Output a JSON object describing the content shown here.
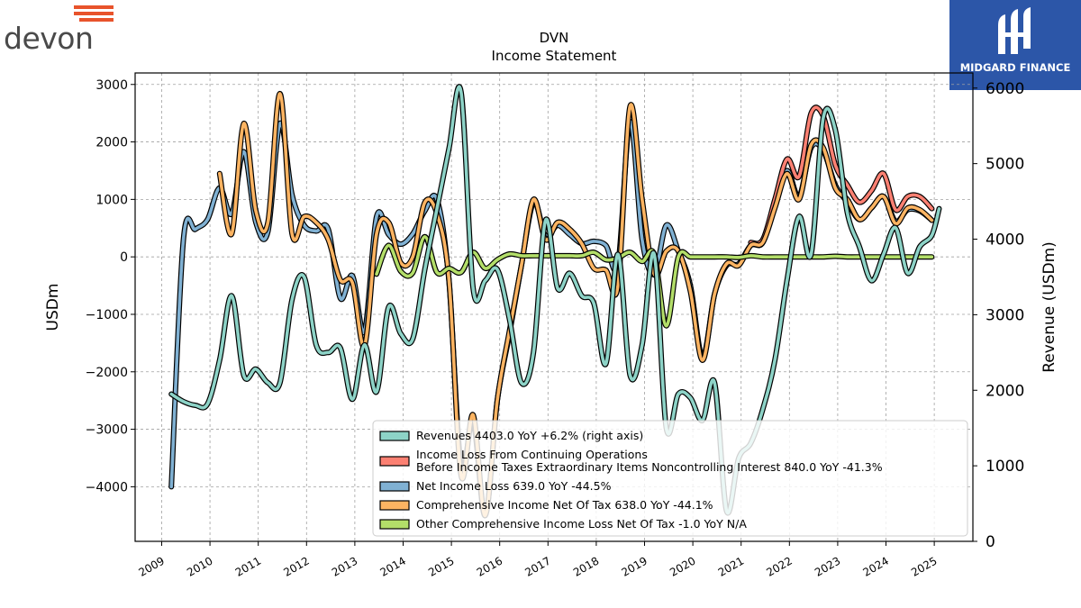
{
  "logos": {
    "left_text": "devon",
    "right_text": "MIDGARD FINANCE"
  },
  "colors": {
    "revenues": "#8dd3c7",
    "income_loss_cont_ops": "#fb8072",
    "net_income": "#80b1d3",
    "comprehensive_income": "#fdb462",
    "other_comprehensive": "#b3de69",
    "devon_accent": "#e8532b",
    "midgard_bg": "#2c56a8"
  },
  "chart_data": {
    "type": "line",
    "title": "DVN",
    "subtitle": "Income Statement",
    "ylabel": "USDm",
    "y2label": "Revenue (USDm)",
    "ylim": [
      -4950,
      3200
    ],
    "y2lim": [
      0,
      6200
    ],
    "xlim": [
      2008.45,
      2025.8
    ],
    "yticks": [
      3000,
      2000,
      1000,
      0,
      -1000,
      -2000,
      -3000,
      -4000
    ],
    "ytick_labels": [
      "3000",
      "2000",
      "1000",
      "0",
      "−1000",
      "−2000",
      "−3000",
      "−4000"
    ],
    "y2ticks": [
      6000,
      5000,
      4000,
      3000,
      2000,
      1000,
      0
    ],
    "y2tick_labels": [
      "6000",
      "5000",
      "4000",
      "3000",
      "2000",
      "1000",
      "0"
    ],
    "xticks": [
      2009,
      2010,
      2011,
      2012,
      2013,
      2014,
      2015,
      2016,
      2017,
      2018,
      2019,
      2020,
      2021,
      2022,
      2023,
      2024,
      2025
    ],
    "xtick_labels": [
      "2009",
      "2010",
      "2011",
      "2012",
      "2013",
      "2014",
      "2015",
      "2016",
      "2017",
      "2018",
      "2019",
      "2020",
      "2021",
      "2022",
      "2023",
      "2024",
      "2025"
    ],
    "grid": true,
    "legend_position": "lower-right",
    "series": [
      {
        "key": "net_income",
        "axis": "left",
        "legend": [
          "Net Income Loss  639.0 YoY -44.5%"
        ],
        "points": [
          [
            2009.2,
            -4000
          ],
          [
            2009.45,
            300
          ],
          [
            2009.7,
            480
          ],
          [
            2009.95,
            650
          ],
          [
            2010.2,
            1200
          ],
          [
            2010.45,
            750
          ],
          [
            2010.7,
            1830
          ],
          [
            2010.95,
            600
          ],
          [
            2011.2,
            440
          ],
          [
            2011.45,
            2320
          ],
          [
            2011.7,
            1080
          ],
          [
            2011.95,
            550
          ],
          [
            2012.2,
            450
          ],
          [
            2012.45,
            480
          ],
          [
            2012.7,
            -720
          ],
          [
            2012.95,
            -330
          ],
          [
            2013.2,
            -1300
          ],
          [
            2013.45,
            700
          ],
          [
            2013.7,
            390
          ],
          [
            2013.95,
            220
          ],
          [
            2014.2,
            400
          ],
          [
            2014.45,
            800
          ],
          [
            2014.7,
            1000
          ],
          [
            2014.95,
            -420
          ],
          [
            2015.2,
            -3650
          ],
          [
            2015.45,
            -2850
          ],
          [
            2015.7,
            -4500
          ],
          [
            2015.95,
            -2500
          ],
          [
            2016.2,
            -1350
          ],
          [
            2016.45,
            -150
          ],
          [
            2016.7,
            950
          ],
          [
            2016.95,
            370
          ],
          [
            2017.2,
            550
          ],
          [
            2017.45,
            390
          ],
          [
            2017.7,
            230
          ],
          [
            2017.95,
            270
          ],
          [
            2018.2,
            200
          ],
          [
            2018.45,
            -130
          ],
          [
            2018.7,
            2350
          ],
          [
            2018.95,
            300
          ],
          [
            2019.2,
            -300
          ],
          [
            2019.45,
            550
          ],
          [
            2019.7,
            100
          ],
          [
            2019.95,
            -500
          ],
          [
            2020.2,
            -1750
          ],
          [
            2020.45,
            -650
          ],
          [
            2020.7,
            -150
          ],
          [
            2020.95,
            -120
          ],
          [
            2021.2,
            200
          ],
          [
            2021.45,
            250
          ],
          [
            2021.7,
            900
          ],
          [
            2021.95,
            1500
          ],
          [
            2022.2,
            1050
          ],
          [
            2022.45,
            1900
          ],
          [
            2022.7,
            1850
          ],
          [
            2022.95,
            1250
          ],
          [
            2023.2,
            950
          ],
          [
            2023.45,
            650
          ],
          [
            2023.7,
            850
          ],
          [
            2023.95,
            1050
          ],
          [
            2024.2,
            620
          ],
          [
            2024.45,
            820
          ],
          [
            2024.7,
            800
          ],
          [
            2024.95,
            639
          ]
        ]
      },
      {
        "key": "income_loss_cont_ops",
        "axis": "left",
        "legend": [
          "Income Loss From Continuing Operations",
          "Before Income Taxes Extraordinary Items Noncontrolling Interest  840.0 YoY -41.3%"
        ],
        "points": [
          [
            2021.2,
            250
          ],
          [
            2021.45,
            300
          ],
          [
            2021.7,
            1000
          ],
          [
            2021.95,
            1700
          ],
          [
            2022.2,
            1400
          ],
          [
            2022.45,
            2500
          ],
          [
            2022.7,
            2450
          ],
          [
            2022.95,
            1600
          ],
          [
            2023.2,
            1250
          ],
          [
            2023.45,
            950
          ],
          [
            2023.7,
            1150
          ],
          [
            2023.95,
            1450
          ],
          [
            2024.2,
            820
          ],
          [
            2024.45,
            1050
          ],
          [
            2024.7,
            1050
          ],
          [
            2024.95,
            840
          ]
        ]
      },
      {
        "key": "comprehensive_income",
        "axis": "left",
        "legend": [
          "Comprehensive Income Net Of Tax  638.0 YoY -44.1%"
        ],
        "points": [
          [
            2010.2,
            1450
          ],
          [
            2010.45,
            400
          ],
          [
            2010.7,
            2320
          ],
          [
            2010.95,
            800
          ],
          [
            2011.2,
            600
          ],
          [
            2011.45,
            2840
          ],
          [
            2011.7,
            400
          ],
          [
            2011.95,
            700
          ],
          [
            2012.2,
            600
          ],
          [
            2012.45,
            300
          ],
          [
            2012.7,
            -400
          ],
          [
            2012.95,
            -450
          ],
          [
            2013.2,
            -1550
          ],
          [
            2013.45,
            400
          ],
          [
            2013.7,
            600
          ],
          [
            2013.95,
            -100
          ],
          [
            2014.2,
            0
          ],
          [
            2014.45,
            950
          ],
          [
            2014.7,
            750
          ],
          [
            2014.95,
            -400
          ],
          [
            2015.2,
            -3800
          ],
          [
            2015.45,
            -2750
          ],
          [
            2015.7,
            -4500
          ],
          [
            2015.95,
            -2500
          ],
          [
            2016.2,
            -1300
          ],
          [
            2016.45,
            -150
          ],
          [
            2016.7,
            1000
          ],
          [
            2016.95,
            300
          ],
          [
            2017.2,
            600
          ],
          [
            2017.45,
            480
          ],
          [
            2017.7,
            230
          ],
          [
            2017.95,
            -200
          ],
          [
            2018.2,
            -230
          ],
          [
            2018.45,
            -500
          ],
          [
            2018.7,
            2620
          ],
          [
            2018.95,
            1000
          ],
          [
            2019.2,
            -300
          ],
          [
            2019.45,
            100
          ],
          [
            2019.7,
            100
          ],
          [
            2019.95,
            -600
          ],
          [
            2020.2,
            -1800
          ],
          [
            2020.45,
            -650
          ],
          [
            2020.7,
            -120
          ],
          [
            2020.95,
            -150
          ],
          [
            2021.2,
            200
          ],
          [
            2021.45,
            250
          ],
          [
            2021.7,
            850
          ],
          [
            2021.95,
            1450
          ],
          [
            2022.2,
            1000
          ],
          [
            2022.45,
            1950
          ],
          [
            2022.7,
            1900
          ],
          [
            2022.95,
            1200
          ],
          [
            2023.2,
            1000
          ],
          [
            2023.45,
            650
          ],
          [
            2023.7,
            850
          ],
          [
            2023.95,
            1050
          ],
          [
            2024.2,
            580
          ],
          [
            2024.45,
            850
          ],
          [
            2024.7,
            820
          ],
          [
            2024.95,
            638
          ]
        ]
      },
      {
        "key": "other_comprehensive",
        "axis": "left",
        "legend": [
          "Other Comprehensive Income Loss Net Of Tax  -1.0 YoY N/A"
        ],
        "points": [
          [
            2013.45,
            -300
          ],
          [
            2013.7,
            200
          ],
          [
            2013.95,
            -250
          ],
          [
            2014.2,
            -280
          ],
          [
            2014.45,
            350
          ],
          [
            2014.7,
            -270
          ],
          [
            2014.95,
            -200
          ],
          [
            2015.2,
            -270
          ],
          [
            2015.45,
            80
          ],
          [
            2015.7,
            -200
          ],
          [
            2015.95,
            -50
          ],
          [
            2016.2,
            50
          ],
          [
            2016.45,
            20
          ],
          [
            2016.7,
            20
          ],
          [
            2016.95,
            20
          ],
          [
            2017.2,
            20
          ],
          [
            2017.45,
            20
          ],
          [
            2017.7,
            20
          ],
          [
            2017.95,
            80
          ],
          [
            2018.2,
            -50
          ],
          [
            2018.45,
            -20
          ],
          [
            2018.7,
            80
          ],
          [
            2018.95,
            -80
          ],
          [
            2019.2,
            50
          ],
          [
            2019.45,
            -1200
          ],
          [
            2019.7,
            0
          ],
          [
            2019.95,
            0
          ],
          [
            2020.2,
            0
          ],
          [
            2020.45,
            0
          ],
          [
            2020.7,
            0
          ],
          [
            2020.95,
            -10
          ],
          [
            2021.2,
            20
          ],
          [
            2021.45,
            0
          ],
          [
            2021.7,
            0
          ],
          [
            2021.95,
            0
          ],
          [
            2022.2,
            0
          ],
          [
            2022.45,
            0
          ],
          [
            2022.7,
            0
          ],
          [
            2022.95,
            10
          ],
          [
            2023.2,
            0
          ],
          [
            2023.45,
            0
          ],
          [
            2023.7,
            0
          ],
          [
            2023.95,
            0
          ],
          [
            2024.2,
            0
          ],
          [
            2024.45,
            0
          ],
          [
            2024.7,
            0
          ],
          [
            2024.95,
            -1
          ]
        ]
      },
      {
        "key": "revenues",
        "axis": "right",
        "legend": [
          "Revenues  4403.0 YoY +6.2% (right axis)"
        ],
        "points": [
          [
            2009.2,
            1950
          ],
          [
            2009.45,
            1850
          ],
          [
            2009.7,
            1800
          ],
          [
            2009.95,
            1820
          ],
          [
            2010.2,
            2400
          ],
          [
            2010.45,
            3250
          ],
          [
            2010.7,
            2200
          ],
          [
            2010.95,
            2280
          ],
          [
            2011.2,
            2100
          ],
          [
            2011.45,
            2100
          ],
          [
            2011.7,
            3200
          ],
          [
            2011.95,
            3500
          ],
          [
            2012.2,
            2600
          ],
          [
            2012.45,
            2500
          ],
          [
            2012.7,
            2560
          ],
          [
            2012.95,
            1880
          ],
          [
            2013.2,
            2600
          ],
          [
            2013.45,
            1980
          ],
          [
            2013.7,
            3100
          ],
          [
            2013.95,
            2750
          ],
          [
            2014.2,
            2680
          ],
          [
            2014.45,
            3600
          ],
          [
            2014.7,
            4400
          ],
          [
            2014.95,
            5200
          ],
          [
            2015.2,
            5950
          ],
          [
            2015.45,
            3350
          ],
          [
            2015.7,
            3450
          ],
          [
            2015.95,
            3600
          ],
          [
            2016.2,
            2950
          ],
          [
            2016.45,
            2100
          ],
          [
            2016.7,
            2500
          ],
          [
            2016.95,
            4250
          ],
          [
            2017.2,
            3350
          ],
          [
            2017.45,
            3550
          ],
          [
            2017.7,
            3250
          ],
          [
            2017.95,
            3150
          ],
          [
            2018.2,
            2350
          ],
          [
            2018.45,
            3800
          ],
          [
            2018.7,
            2200
          ],
          [
            2018.95,
            2600
          ],
          [
            2019.2,
            3800
          ],
          [
            2019.45,
            1500
          ],
          [
            2019.7,
            1950
          ],
          [
            2019.95,
            1900
          ],
          [
            2020.2,
            1600
          ],
          [
            2020.45,
            2100
          ],
          [
            2020.7,
            400
          ],
          [
            2020.95,
            1100
          ],
          [
            2021.2,
            1300
          ],
          [
            2021.45,
            1750
          ],
          [
            2021.7,
            2400
          ],
          [
            2021.95,
            3450
          ],
          [
            2022.2,
            4300
          ],
          [
            2022.45,
            3800
          ],
          [
            2022.7,
            5600
          ],
          [
            2022.95,
            5450
          ],
          [
            2023.2,
            4350
          ],
          [
            2023.45,
            3900
          ],
          [
            2023.7,
            3450
          ],
          [
            2023.95,
            3800
          ],
          [
            2024.2,
            4150
          ],
          [
            2024.45,
            3550
          ],
          [
            2024.7,
            3900
          ],
          [
            2024.95,
            4050
          ],
          [
            2025.1,
            4403
          ]
        ]
      }
    ]
  }
}
